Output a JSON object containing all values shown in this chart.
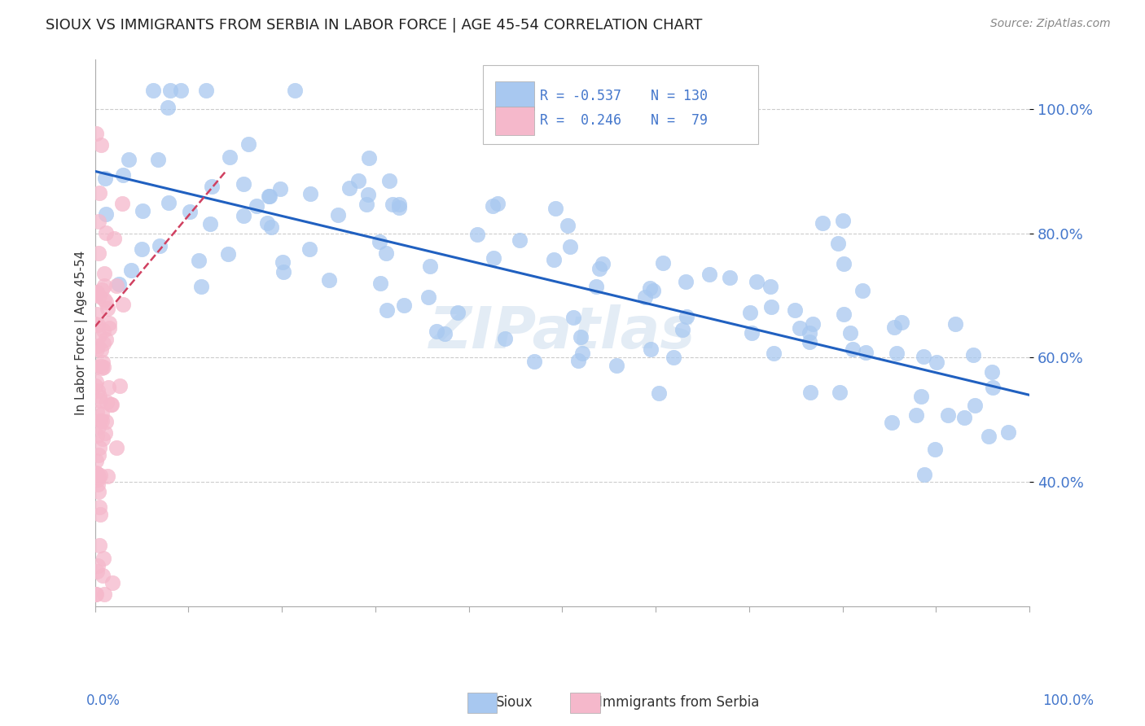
{
  "title": "SIOUX VS IMMIGRANTS FROM SERBIA IN LABOR FORCE | AGE 45-54 CORRELATION CHART",
  "source": "Source: ZipAtlas.com",
  "ylabel": "In Labor Force | Age 45-54",
  "y_tick_labels": [
    "40.0%",
    "60.0%",
    "80.0%",
    "100.0%"
  ],
  "y_tick_values": [
    0.4,
    0.6,
    0.8,
    1.0
  ],
  "x_range": [
    0.0,
    1.0
  ],
  "y_range": [
    0.2,
    1.08
  ],
  "blue_R": -0.537,
  "blue_N": 130,
  "pink_R": 0.246,
  "pink_N": 79,
  "blue_color": "#a8c8f0",
  "pink_color": "#f5b8cb",
  "line_blue": "#2060c0",
  "line_pink": "#d04060",
  "watermark": "ZIPatlas",
  "legend_label_blue": "Sioux",
  "legend_label_pink": "Immigrants from Serbia",
  "grid_color": "#cccccc",
  "bg_color": "#ffffff",
  "title_color": "#222222",
  "tick_label_color": "#4477cc"
}
